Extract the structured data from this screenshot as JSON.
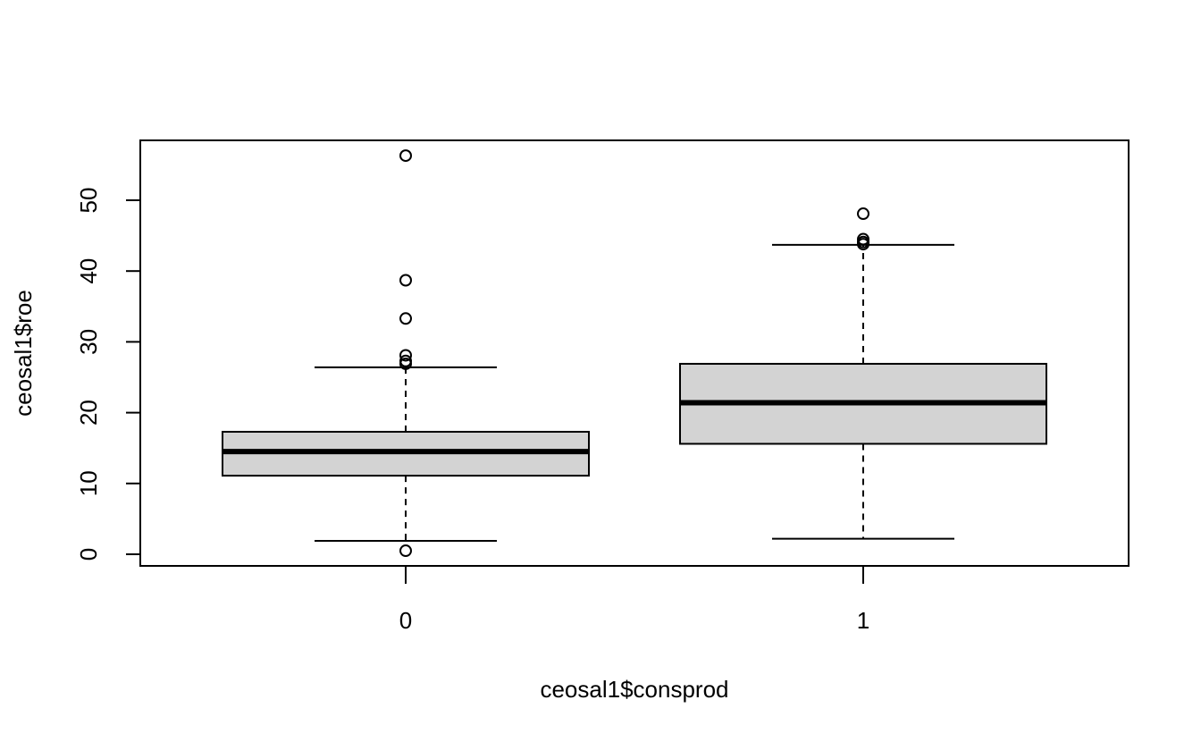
{
  "chart_data": {
    "type": "boxplot",
    "title": "",
    "xlabel": "ceosal1$consprod",
    "ylabel": "ceosal1$roe",
    "categories": [
      "0",
      "1"
    ],
    "y_ticks": [
      0,
      10,
      20,
      30,
      40,
      50
    ],
    "ylim": [
      -1.5,
      58.5
    ],
    "grid": false,
    "legend": "none",
    "box_fill": "#d3d3d3",
    "stroke": "#000000",
    "boxes": [
      {
        "category": "0",
        "whisker_low": 1.9,
        "q1": 11.1,
        "median": 14.5,
        "q3": 17.3,
        "whisker_high": 26.4,
        "outliers": [
          0.5,
          26.9,
          27.3,
          28.1,
          33.3,
          38.7,
          56.3
        ]
      },
      {
        "category": "1",
        "whisker_low": 2.2,
        "q1": 15.6,
        "median": 21.4,
        "q3": 26.9,
        "whisker_high": 43.7,
        "outliers": [
          43.8,
          44.1,
          44.5,
          48.1
        ]
      }
    ]
  }
}
